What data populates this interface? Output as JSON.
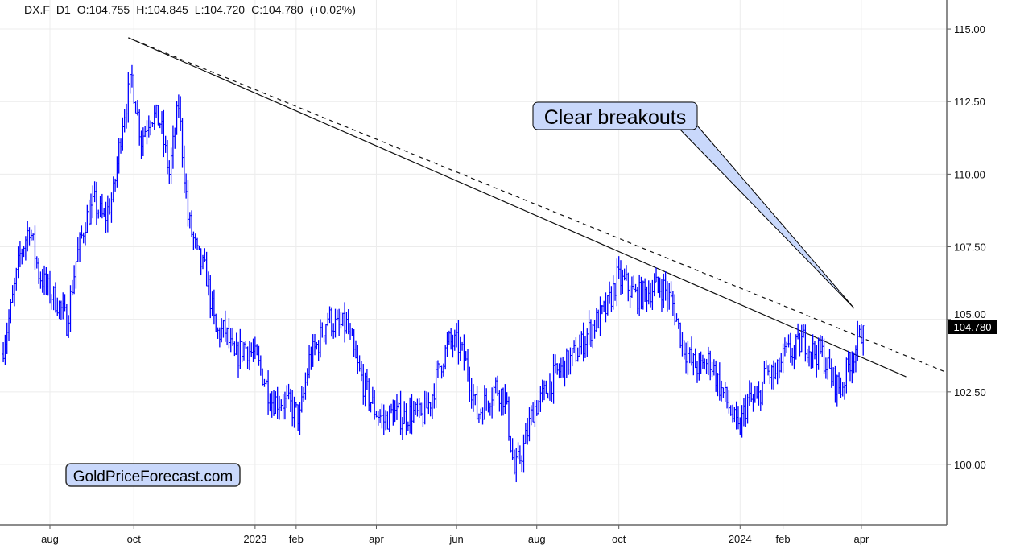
{
  "header": {
    "symbol": "DX.F",
    "timeframe": "D1",
    "open": "O:104.755",
    "high": "H:104.845",
    "low": "L:104.720",
    "close": "C:104.780",
    "change": "(+0.02%)"
  },
  "chart_data": {
    "type": "ohlc",
    "title": "",
    "xlabel": "",
    "ylabel": "",
    "ylim": [
      97.92,
      116.0
    ],
    "grid": true,
    "y_ticks": [
      "100.00",
      "102.50",
      "105.00",
      "107.50",
      "110.00",
      "112.50",
      "115.00"
    ],
    "x_ticks": [
      {
        "label": "aug",
        "date": "2022-08-01"
      },
      {
        "label": "oct",
        "date": "2022-10-03"
      },
      {
        "label": "2023",
        "date": "2023-01-02"
      },
      {
        "label": "feb",
        "date": "2023-02-01"
      },
      {
        "label": "apr",
        "date": "2023-04-03"
      },
      {
        "label": "jun",
        "date": "2023-06-01"
      },
      {
        "label": "aug",
        "date": "2023-08-01"
      },
      {
        "label": "oct",
        "date": "2023-10-02"
      },
      {
        "label": "2024",
        "date": "2024-01-01"
      },
      {
        "label": "feb",
        "date": "2024-02-01"
      },
      {
        "label": "apr",
        "date": "2024-04-01"
      }
    ],
    "series_color": "#0000ff",
    "weekly_closes": [
      [
        "2022-06-24",
        103.8
      ],
      [
        "2022-07-01",
        105.3
      ],
      [
        "2022-07-08",
        107.2
      ],
      [
        "2022-07-15",
        108.2
      ],
      [
        "2022-07-22",
        106.6
      ],
      [
        "2022-07-29",
        106.0
      ],
      [
        "2022-08-05",
        105.6
      ],
      [
        "2022-08-12",
        104.9
      ],
      [
        "2022-08-19",
        107.0
      ],
      [
        "2022-08-26",
        108.4
      ],
      [
        "2022-09-02",
        109.0
      ],
      [
        "2022-09-09",
        108.4
      ],
      [
        "2022-09-16",
        109.3
      ],
      [
        "2022-09-23",
        111.9
      ],
      [
        "2022-09-30",
        113.3
      ],
      [
        "2022-10-07",
        111.2
      ],
      [
        "2022-10-14",
        112.1
      ],
      [
        "2022-10-21",
        111.8
      ],
      [
        "2022-10-28",
        110.0
      ],
      [
        "2022-11-04",
        112.4
      ],
      [
        "2022-11-11",
        108.5
      ],
      [
        "2022-11-18",
        107.2
      ],
      [
        "2022-11-25",
        106.5
      ],
      [
        "2022-12-02",
        104.5
      ],
      [
        "2022-12-09",
        104.6
      ],
      [
        "2022-12-16",
        103.6
      ],
      [
        "2022-12-23",
        104.1
      ],
      [
        "2022-12-30",
        103.8
      ],
      [
        "2023-01-06",
        103.1
      ],
      [
        "2023-01-13",
        102.2
      ],
      [
        "2023-01-20",
        102.2
      ],
      [
        "2023-01-27",
        102.0
      ],
      [
        "2023-02-03",
        101.6
      ],
      [
        "2023-02-10",
        103.6
      ],
      [
        "2023-02-17",
        104.2
      ],
      [
        "2023-02-24",
        105.1
      ],
      [
        "2023-03-03",
        104.7
      ],
      [
        "2023-03-10",
        104.8
      ],
      [
        "2023-03-17",
        103.5
      ],
      [
        "2023-03-24",
        102.6
      ],
      [
        "2023-03-31",
        101.9
      ],
      [
        "2023-04-07",
        101.5
      ],
      [
        "2023-04-14",
        101.8
      ],
      [
        "2023-04-21",
        101.6
      ],
      [
        "2023-04-28",
        101.8
      ],
      [
        "2023-05-05",
        101.6
      ],
      [
        "2023-05-12",
        102.2
      ],
      [
        "2023-05-19",
        103.4
      ],
      [
        "2023-05-26",
        104.2
      ],
      [
        "2023-06-02",
        104.1
      ],
      [
        "2023-06-09",
        103.3
      ],
      [
        "2023-06-16",
        101.7
      ],
      [
        "2023-06-23",
        102.2
      ],
      [
        "2023-06-30",
        102.7
      ],
      [
        "2023-07-07",
        102.3
      ],
      [
        "2023-07-14",
        99.7
      ],
      [
        "2023-07-21",
        100.6
      ],
      [
        "2023-07-28",
        101.9
      ],
      [
        "2023-08-04",
        102.3
      ],
      [
        "2023-08-11",
        102.9
      ],
      [
        "2023-08-18",
        103.3
      ],
      [
        "2023-08-25",
        103.6
      ],
      [
        "2023-09-01",
        104.0
      ],
      [
        "2023-09-08",
        104.6
      ],
      [
        "2023-09-15",
        105.0
      ],
      [
        "2023-09-22",
        105.4
      ],
      [
        "2023-09-29",
        106.4
      ],
      [
        "2023-10-06",
        106.2
      ],
      [
        "2023-10-13",
        105.8
      ],
      [
        "2023-10-20",
        105.9
      ],
      [
        "2023-10-27",
        106.1
      ],
      [
        "2023-11-03",
        106.1
      ],
      [
        "2023-11-10",
        105.5
      ],
      [
        "2023-11-17",
        104.2
      ],
      [
        "2023-11-24",
        103.5
      ],
      [
        "2023-12-01",
        103.3
      ],
      [
        "2023-12-08",
        103.6
      ],
      [
        "2023-12-15",
        102.7
      ],
      [
        "2023-12-22",
        102.0
      ],
      [
        "2023-12-29",
        101.1
      ],
      [
        "2024-01-05",
        102.2
      ],
      [
        "2024-01-12",
        102.1
      ],
      [
        "2024-01-19",
        103.2
      ],
      [
        "2024-01-26",
        103.0
      ],
      [
        "2024-02-02",
        103.8
      ],
      [
        "2024-02-09",
        103.9
      ],
      [
        "2024-02-16",
        104.3
      ],
      [
        "2024-02-23",
        103.9
      ],
      [
        "2024-03-01",
        103.8
      ],
      [
        "2024-03-08",
        103.0
      ],
      [
        "2024-03-15",
        102.6
      ],
      [
        "2024-03-22",
        103.6
      ],
      [
        "2024-03-29",
        104.3
      ],
      [
        "2024-04-02",
        104.78
      ]
    ],
    "last_price": "104.780",
    "trendlines": [
      {
        "style": "solid",
        "from": [
          "2022-09-28",
          114.7
        ],
        "to": [
          "2024-05-03",
          103.02
        ]
      },
      {
        "style": "dashed",
        "from": [
          "2022-09-28",
          114.7
        ],
        "to": [
          "2024-06-03",
          103.19
        ]
      }
    ],
    "annotations": [
      {
        "text": "Clear breakouts"
      },
      {
        "text": "GoldPriceForecast.com"
      }
    ]
  }
}
